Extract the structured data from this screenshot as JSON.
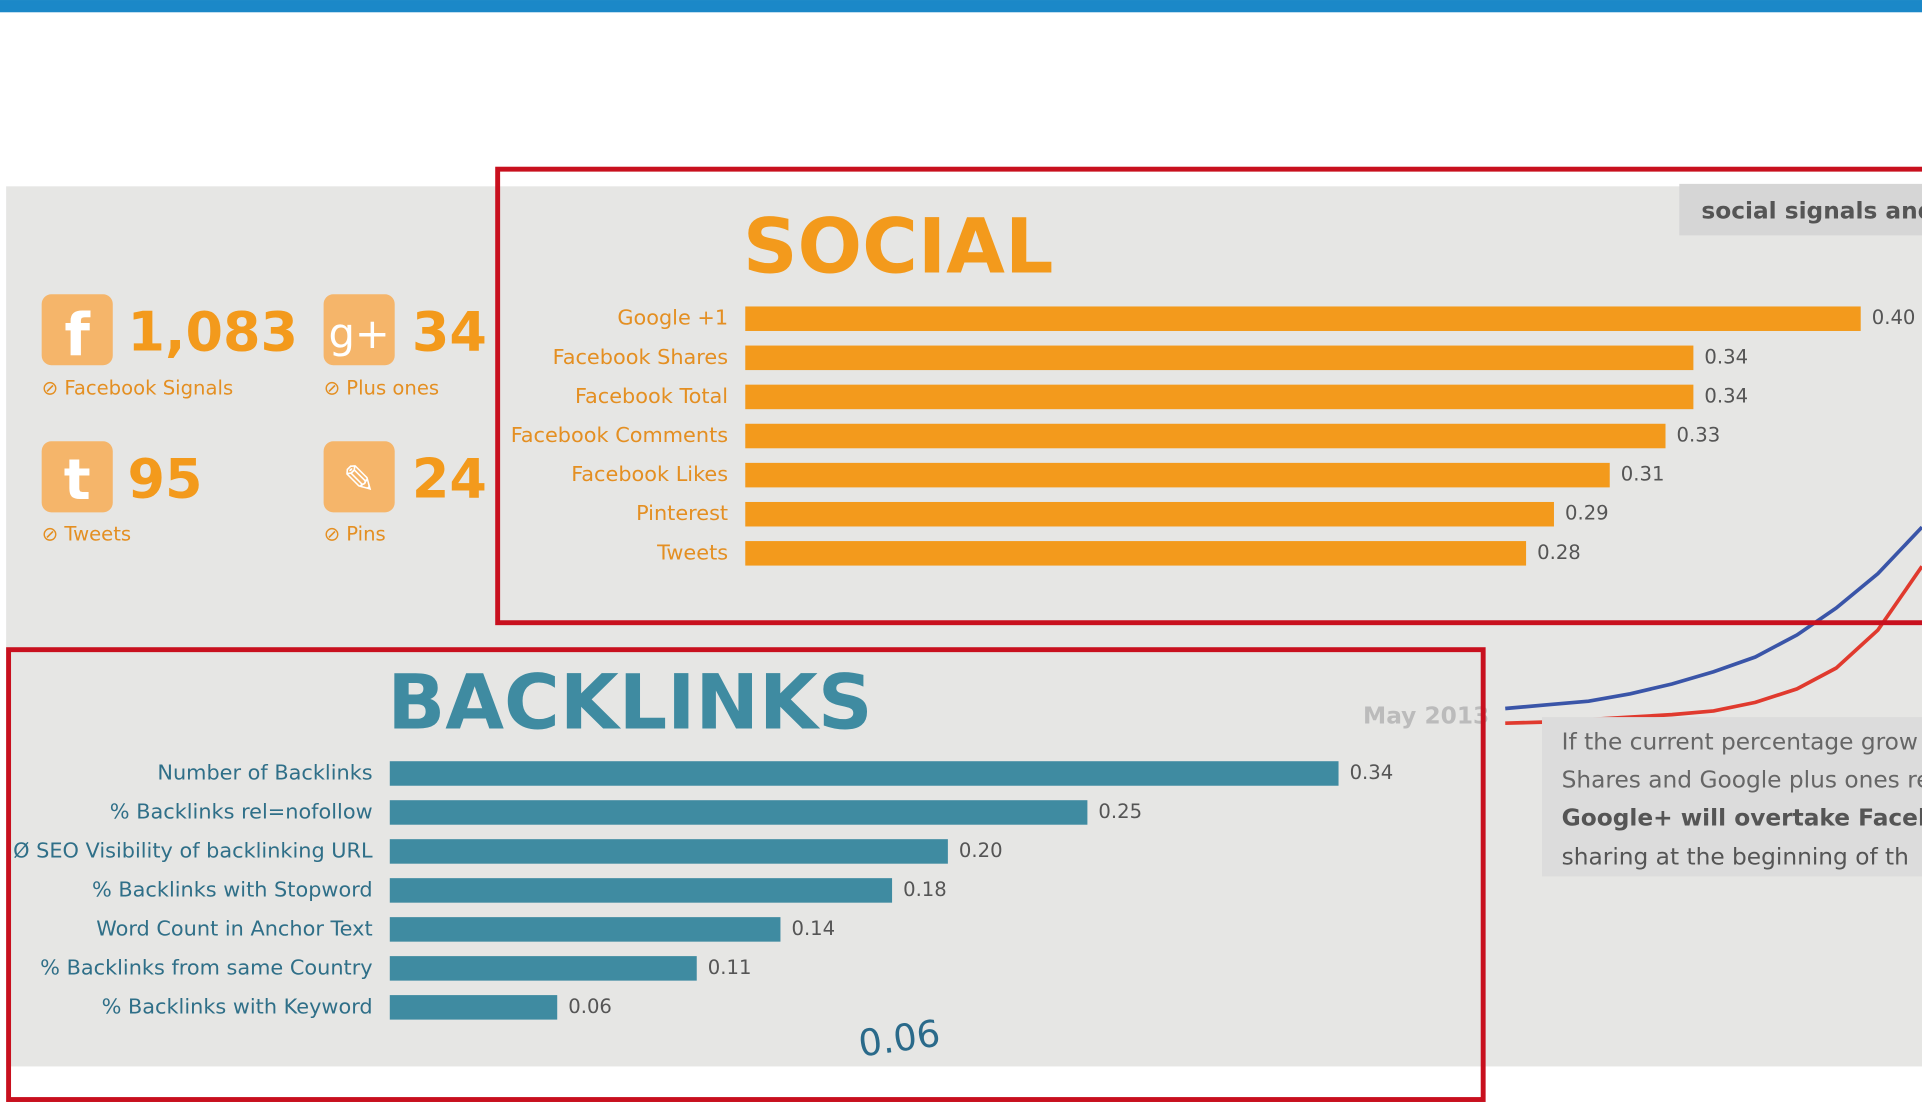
{
  "stats": [
    {
      "value": "1,083",
      "label": "⊘ Facebook Signals"
    },
    {
      "value": "34",
      "label": "⊘ Plus ones"
    },
    {
      "value": "95",
      "label": "⊘ Tweets"
    },
    {
      "value": "24",
      "label": "⊘ Pins"
    }
  ],
  "side_note": "social signals and",
  "date": "May 2013",
  "paragraph": [
    "If the current percentage grow",
    "Shares and Google plus ones re",
    "Google+ will overtake Facebo",
    "sharing at the beginning of th"
  ],
  "footnote": "0.06",
  "chart_data": [
    {
      "type": "bar",
      "title": "SOCIAL",
      "color": "#f39a1c",
      "categories": [
        "Google +1",
        "Facebook Shares",
        "Facebook Total",
        "Facebook Comments",
        "Facebook Likes",
        "Pinterest",
        "Tweets"
      ],
      "values": [
        0.4,
        0.34,
        0.34,
        0.33,
        0.31,
        0.29,
        0.28
      ],
      "value_labels": [
        "0.40",
        "0.34",
        "0.34",
        "0.33",
        "0.31",
        "0.29",
        "0.28"
      ],
      "xlim": [
        0,
        0.4
      ]
    },
    {
      "type": "bar",
      "title": "BACKLINKS",
      "color": "#3f8ba1",
      "categories": [
        "Number of Backlinks",
        "% Backlinks rel=nofollow",
        "Ø SEO Visibility of backlinking URL",
        "% Backlinks with Stopword",
        "Word Count in Anchor Text",
        "% Backlinks from same Country",
        "% Backlinks with Keyword"
      ],
      "values": [
        0.34,
        0.25,
        0.2,
        0.18,
        0.14,
        0.11,
        0.06
      ],
      "value_labels": [
        "0.34",
        "0.25",
        "0.20",
        "0.18",
        "0.14",
        "0.11",
        "0.06"
      ],
      "xlim": [
        0,
        0.34
      ]
    }
  ]
}
